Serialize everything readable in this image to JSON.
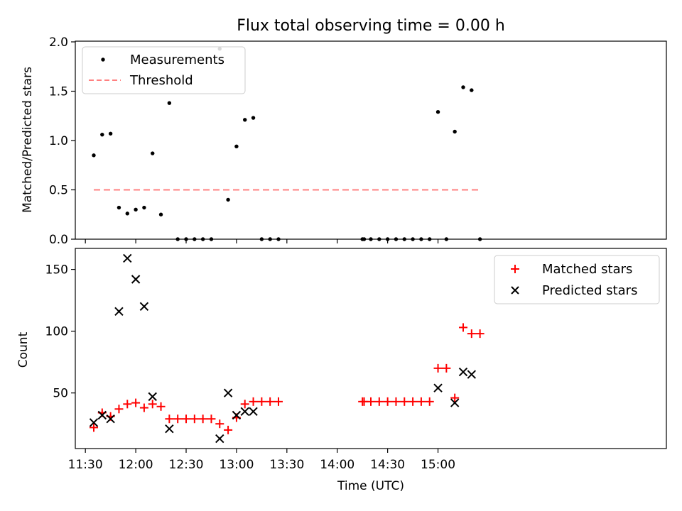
{
  "chart_data": [
    {
      "type": "scatter",
      "title": "Flux total observing time = 0.00 h",
      "ylabel": "Matched/Predicted stars",
      "xlabel": "",
      "ylim": [
        0,
        2.0
      ],
      "yticks": [
        0.0,
        0.5,
        1.0,
        1.5,
        2.0
      ],
      "ytick_labels": [
        "0.0",
        "0.5",
        "1.0",
        "1.5",
        "2.0"
      ],
      "xlim_minutes": [
        684,
        1036
      ],
      "xticks_minutes": [
        690,
        720,
        750,
        780,
        810,
        840,
        870,
        900
      ],
      "legend_position": "upper-left",
      "series": [
        {
          "name": "Measurements",
          "marker": "dot",
          "color": "#000000",
          "x_minutes": [
            695,
            700,
            705,
            710,
            715,
            720,
            725,
            730,
            735,
            740,
            745,
            750,
            755,
            760,
            765,
            770,
            775,
            780,
            785,
            790,
            795,
            800,
            805,
            855,
            856,
            860,
            865,
            870,
            875,
            880,
            885,
            890,
            895,
            900,
            905,
            910,
            915,
            920,
            925
          ],
          "values": [
            0.85,
            1.06,
            1.07,
            0.32,
            0.26,
            0.3,
            0.32,
            0.87,
            0.25,
            1.38,
            0.0,
            0.0,
            0.0,
            0.0,
            0.0,
            1.93,
            0.4,
            0.94,
            1.21,
            1.23,
            0.0,
            0.0,
            0.0,
            0.0,
            0.0,
            0.0,
            0.0,
            0.0,
            0.0,
            0.0,
            0.0,
            0.0,
            0.0,
            1.29,
            0.0,
            1.09,
            1.54,
            1.51,
            0.0
          ]
        },
        {
          "name": "Threshold",
          "line_style": "dashed",
          "color": "#ff8080",
          "x_minutes": [
            695,
            925
          ],
          "values": [
            0.5,
            0.5
          ]
        }
      ]
    },
    {
      "type": "scatter",
      "title": "",
      "ylabel": "Count",
      "xlabel": "Time (UTC)",
      "ylim": [
        5,
        167
      ],
      "yticks": [
        50,
        100,
        150
      ],
      "ytick_labels": [
        "50",
        "100",
        "150"
      ],
      "xlim_minutes": [
        684,
        1036
      ],
      "xticks_minutes": [
        690,
        720,
        750,
        780,
        810,
        840,
        870,
        900
      ],
      "xtick_labels": [
        "11:30",
        "12:00",
        "12:30",
        "13:00",
        "13:30",
        "14:00",
        "14:30",
        "15:00"
      ],
      "legend_position": "upper-right",
      "series": [
        {
          "name": "Matched stars",
          "marker": "plus",
          "color": "#ff0000",
          "x_minutes": [
            695,
            700,
            705,
            710,
            715,
            720,
            725,
            730,
            735,
            740,
            745,
            750,
            755,
            760,
            765,
            770,
            775,
            780,
            785,
            790,
            795,
            800,
            805,
            855,
            856,
            860,
            865,
            870,
            875,
            880,
            885,
            890,
            895,
            900,
            905,
            910,
            915,
            920,
            925
          ],
          "values": [
            22,
            34,
            31,
            37,
            41,
            42,
            38,
            41,
            39,
            29,
            29,
            29,
            29,
            29,
            29,
            25,
            20,
            30,
            41,
            43,
            43,
            43,
            43,
            43,
            43,
            43,
            43,
            43,
            43,
            43,
            43,
            43,
            43,
            70,
            70,
            46,
            103,
            98,
            98
          ]
        },
        {
          "name": "Predicted stars",
          "marker": "x",
          "color": "#000000",
          "x_minutes": [
            695,
            700,
            705,
            710,
            715,
            720,
            725,
            730,
            740,
            770,
            775,
            780,
            785,
            790,
            900,
            910,
            915,
            920
          ],
          "values": [
            26,
            32,
            29,
            116,
            159,
            142,
            120,
            47,
            21,
            13,
            50,
            32,
            35,
            35,
            54,
            42,
            67,
            65
          ]
        }
      ]
    }
  ]
}
